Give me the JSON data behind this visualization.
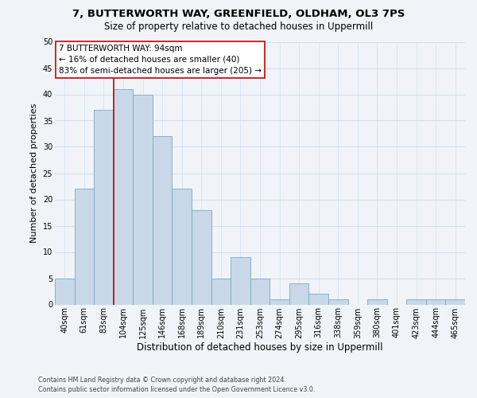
{
  "title1": "7, BUTTERWORTH WAY, GREENFIELD, OLDHAM, OL3 7PS",
  "title2": "Size of property relative to detached houses in Uppermill",
  "xlabel": "Distribution of detached houses by size in Uppermill",
  "ylabel": "Number of detached properties",
  "bin_labels": [
    "40sqm",
    "61sqm",
    "83sqm",
    "104sqm",
    "125sqm",
    "146sqm",
    "168sqm",
    "189sqm",
    "210sqm",
    "231sqm",
    "253sqm",
    "274sqm",
    "295sqm",
    "316sqm",
    "338sqm",
    "359sqm",
    "380sqm",
    "401sqm",
    "423sqm",
    "444sqm",
    "465sqm"
  ],
  "bar_values": [
    5,
    22,
    37,
    41,
    40,
    32,
    22,
    18,
    5,
    9,
    5,
    1,
    4,
    2,
    1,
    0,
    1,
    0,
    1,
    1,
    1
  ],
  "bar_color": "#c8d8e8",
  "bar_edge_color": "#7aaabf",
  "redline_index": 2.5,
  "annotation_title": "7 BUTTERWORTH WAY: 94sqm",
  "annotation_line1": "← 16% of detached houses are smaller (40)",
  "annotation_line2": "83% of semi-detached houses are larger (205) →",
  "footer1": "Contains HM Land Registry data © Crown copyright and database right 2024.",
  "footer2": "Contains public sector information licensed under the Open Government Licence v3.0.",
  "ylim": [
    0,
    50
  ],
  "yticks": [
    0,
    5,
    10,
    15,
    20,
    25,
    30,
    35,
    40,
    45,
    50
  ],
  "title1_fontsize": 9.5,
  "title2_fontsize": 8.5,
  "xlabel_fontsize": 8.5,
  "ylabel_fontsize": 8.0,
  "tick_fontsize": 7.0,
  "annotation_fontsize": 7.5,
  "footer_fontsize": 5.8,
  "annotation_box_color": "#ffffff",
  "annotation_box_edge": "#cc0000",
  "redline_color": "#cc0000",
  "grid_color": "#d0e0f0",
  "bg_color": "#f0f4f8"
}
